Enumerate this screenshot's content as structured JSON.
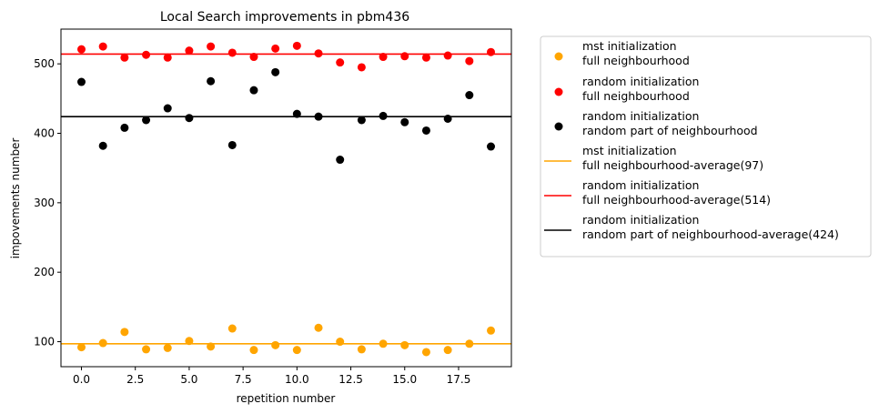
{
  "chart_data": {
    "type": "scatter",
    "title": "Local Search improvements in pbm436",
    "xlabel": "repetition number",
    "ylabel": "impovements number",
    "xlim": [
      -0.95,
      19.95
    ],
    "ylim": [
      64,
      550
    ],
    "xticks": [
      0.0,
      2.5,
      5.0,
      7.5,
      10.0,
      12.5,
      15.0,
      17.5
    ],
    "xtick_labels": [
      "0.0",
      "2.5",
      "5.0",
      "7.5",
      "10.0",
      "12.5",
      "15.0",
      "17.5"
    ],
    "yticks": [
      100,
      200,
      300,
      400,
      500
    ],
    "ytick_labels": [
      "100",
      "200",
      "300",
      "400",
      "500"
    ],
    "grid": false,
    "legend_placement": "outside-right",
    "x": [
      0,
      1,
      2,
      3,
      4,
      5,
      6,
      7,
      8,
      9,
      10,
      11,
      12,
      13,
      14,
      15,
      16,
      17,
      18,
      19
    ],
    "series": [
      {
        "kind": "scatter",
        "name_lines": [
          "mst initialization",
          "full neighbourhood"
        ],
        "color": "#ffa500",
        "values": [
          92,
          98,
          114,
          89,
          91,
          101,
          93,
          119,
          88,
          95,
          88,
          120,
          100,
          89,
          97,
          95,
          85,
          88,
          97,
          116
        ]
      },
      {
        "kind": "scatter",
        "name_lines": [
          "random initialization",
          "full neighbourhood"
        ],
        "color": "#ff0000",
        "values": [
          521,
          525,
          509,
          513,
          509,
          519,
          525,
          516,
          510,
          522,
          526,
          515,
          502,
          495,
          510,
          511,
          509,
          512,
          504,
          517
        ]
      },
      {
        "kind": "scatter",
        "name_lines": [
          "random initialization",
          "random part of neighbourhood"
        ],
        "color": "#000000",
        "values": [
          474,
          382,
          408,
          419,
          436,
          422,
          475,
          383,
          462,
          488,
          428,
          424,
          362,
          419,
          425,
          416,
          404,
          421,
          455,
          381
        ]
      },
      {
        "kind": "hline",
        "name_lines": [
          "mst initialization",
          "full neighbourhood-average(97)"
        ],
        "color": "#ffa500",
        "value": 97
      },
      {
        "kind": "hline",
        "name_lines": [
          "random initialization",
          "full neighbourhood-average(514)"
        ],
        "color": "#ff0000",
        "value": 514
      },
      {
        "kind": "hline",
        "name_lines": [
          "random initialization",
          "random part of neighbourhood-average(424)"
        ],
        "color": "#000000",
        "value": 424
      }
    ]
  }
}
